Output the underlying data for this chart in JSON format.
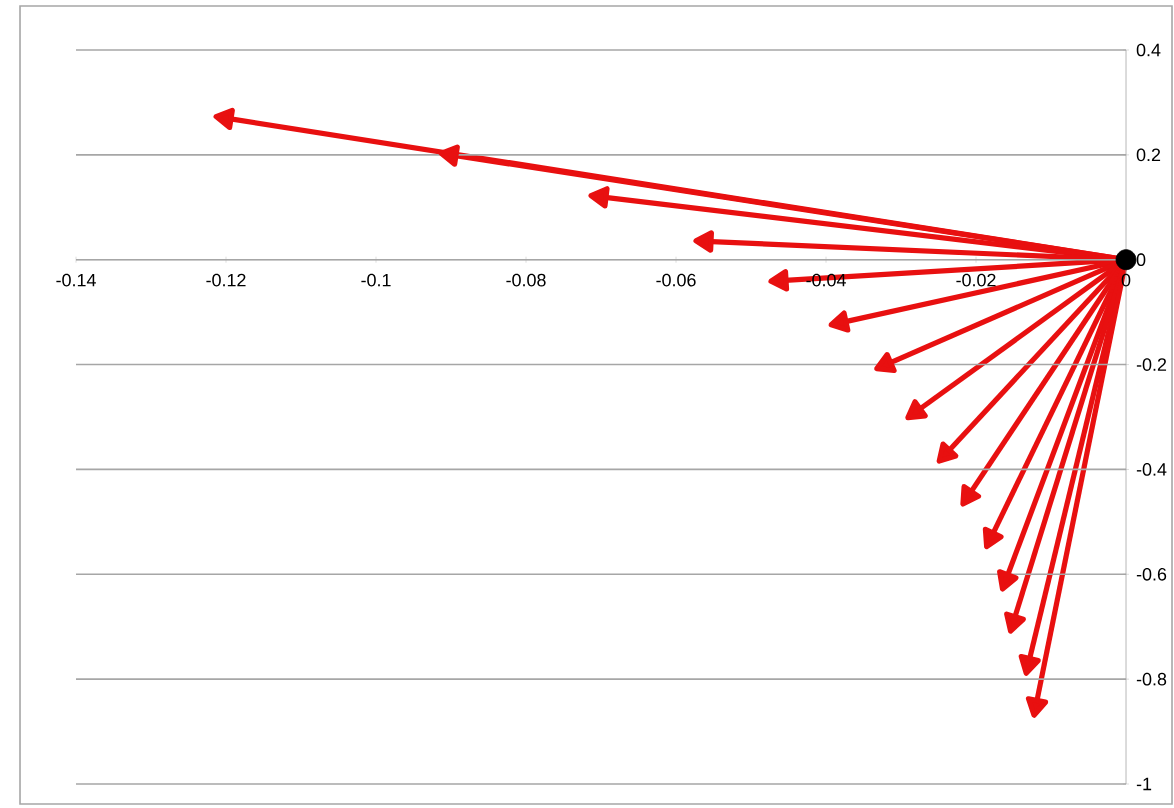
{
  "chart_data": {
    "type": "line",
    "xlim": [
      -0.14,
      0
    ],
    "ylim": [
      -1,
      0.4
    ],
    "xticks": [
      -0.14,
      -0.12,
      -0.1,
      -0.08,
      -0.06,
      -0.04,
      -0.02,
      0
    ],
    "yticks": [
      -1,
      -0.8,
      -0.6,
      -0.4,
      -0.2,
      0,
      0.2,
      0.4
    ],
    "grid": "y",
    "line_style": "solid",
    "marker": "triangle",
    "series": [
      {
        "color": "#e81010",
        "x": [
          0,
          -0.12
        ],
        "values": [
          0,
          0.27
        ]
      },
      {
        "color": "#e81010",
        "x": [
          0,
          -0.09
        ],
        "values": [
          0,
          0.2
        ]
      },
      {
        "color": "#e81010",
        "x": [
          0,
          -0.07
        ],
        "values": [
          0,
          0.12
        ]
      },
      {
        "color": "#e81010",
        "x": [
          0,
          -0.056
        ],
        "values": [
          0,
          0.035
        ]
      },
      {
        "color": "#e81010",
        "x": [
          0,
          -0.046
        ],
        "values": [
          0,
          -0.04
        ]
      },
      {
        "color": "#e81010",
        "x": [
          0,
          -0.038
        ],
        "values": [
          0,
          -0.12
        ]
      },
      {
        "color": "#e81010",
        "x": [
          0,
          -0.032
        ],
        "values": [
          0,
          -0.2
        ]
      },
      {
        "color": "#e81010",
        "x": [
          0,
          -0.028
        ],
        "values": [
          0,
          -0.29
        ]
      },
      {
        "color": "#e81010",
        "x": [
          0,
          -0.024
        ],
        "values": [
          0,
          -0.37
        ]
      },
      {
        "color": "#e81010",
        "x": [
          0,
          -0.021
        ],
        "values": [
          0,
          -0.45
        ]
      },
      {
        "color": "#e81010",
        "x": [
          0,
          -0.018
        ],
        "values": [
          0,
          -0.53
        ]
      },
      {
        "color": "#e81010",
        "x": [
          0,
          -0.016
        ],
        "values": [
          0,
          -0.61
        ]
      },
      {
        "color": "#e81010",
        "x": [
          0,
          -0.015
        ],
        "values": [
          0,
          -0.69
        ]
      },
      {
        "color": "#e81010",
        "x": [
          0,
          -0.013
        ],
        "values": [
          0,
          -0.77
        ]
      },
      {
        "color": "#e81010",
        "x": [
          0,
          -0.012
        ],
        "values": [
          0,
          -0.85
        ]
      },
      {
        "type": "scatter",
        "color": "#000000",
        "marker": "circle",
        "x": [
          0
        ],
        "values": [
          0
        ]
      }
    ]
  }
}
